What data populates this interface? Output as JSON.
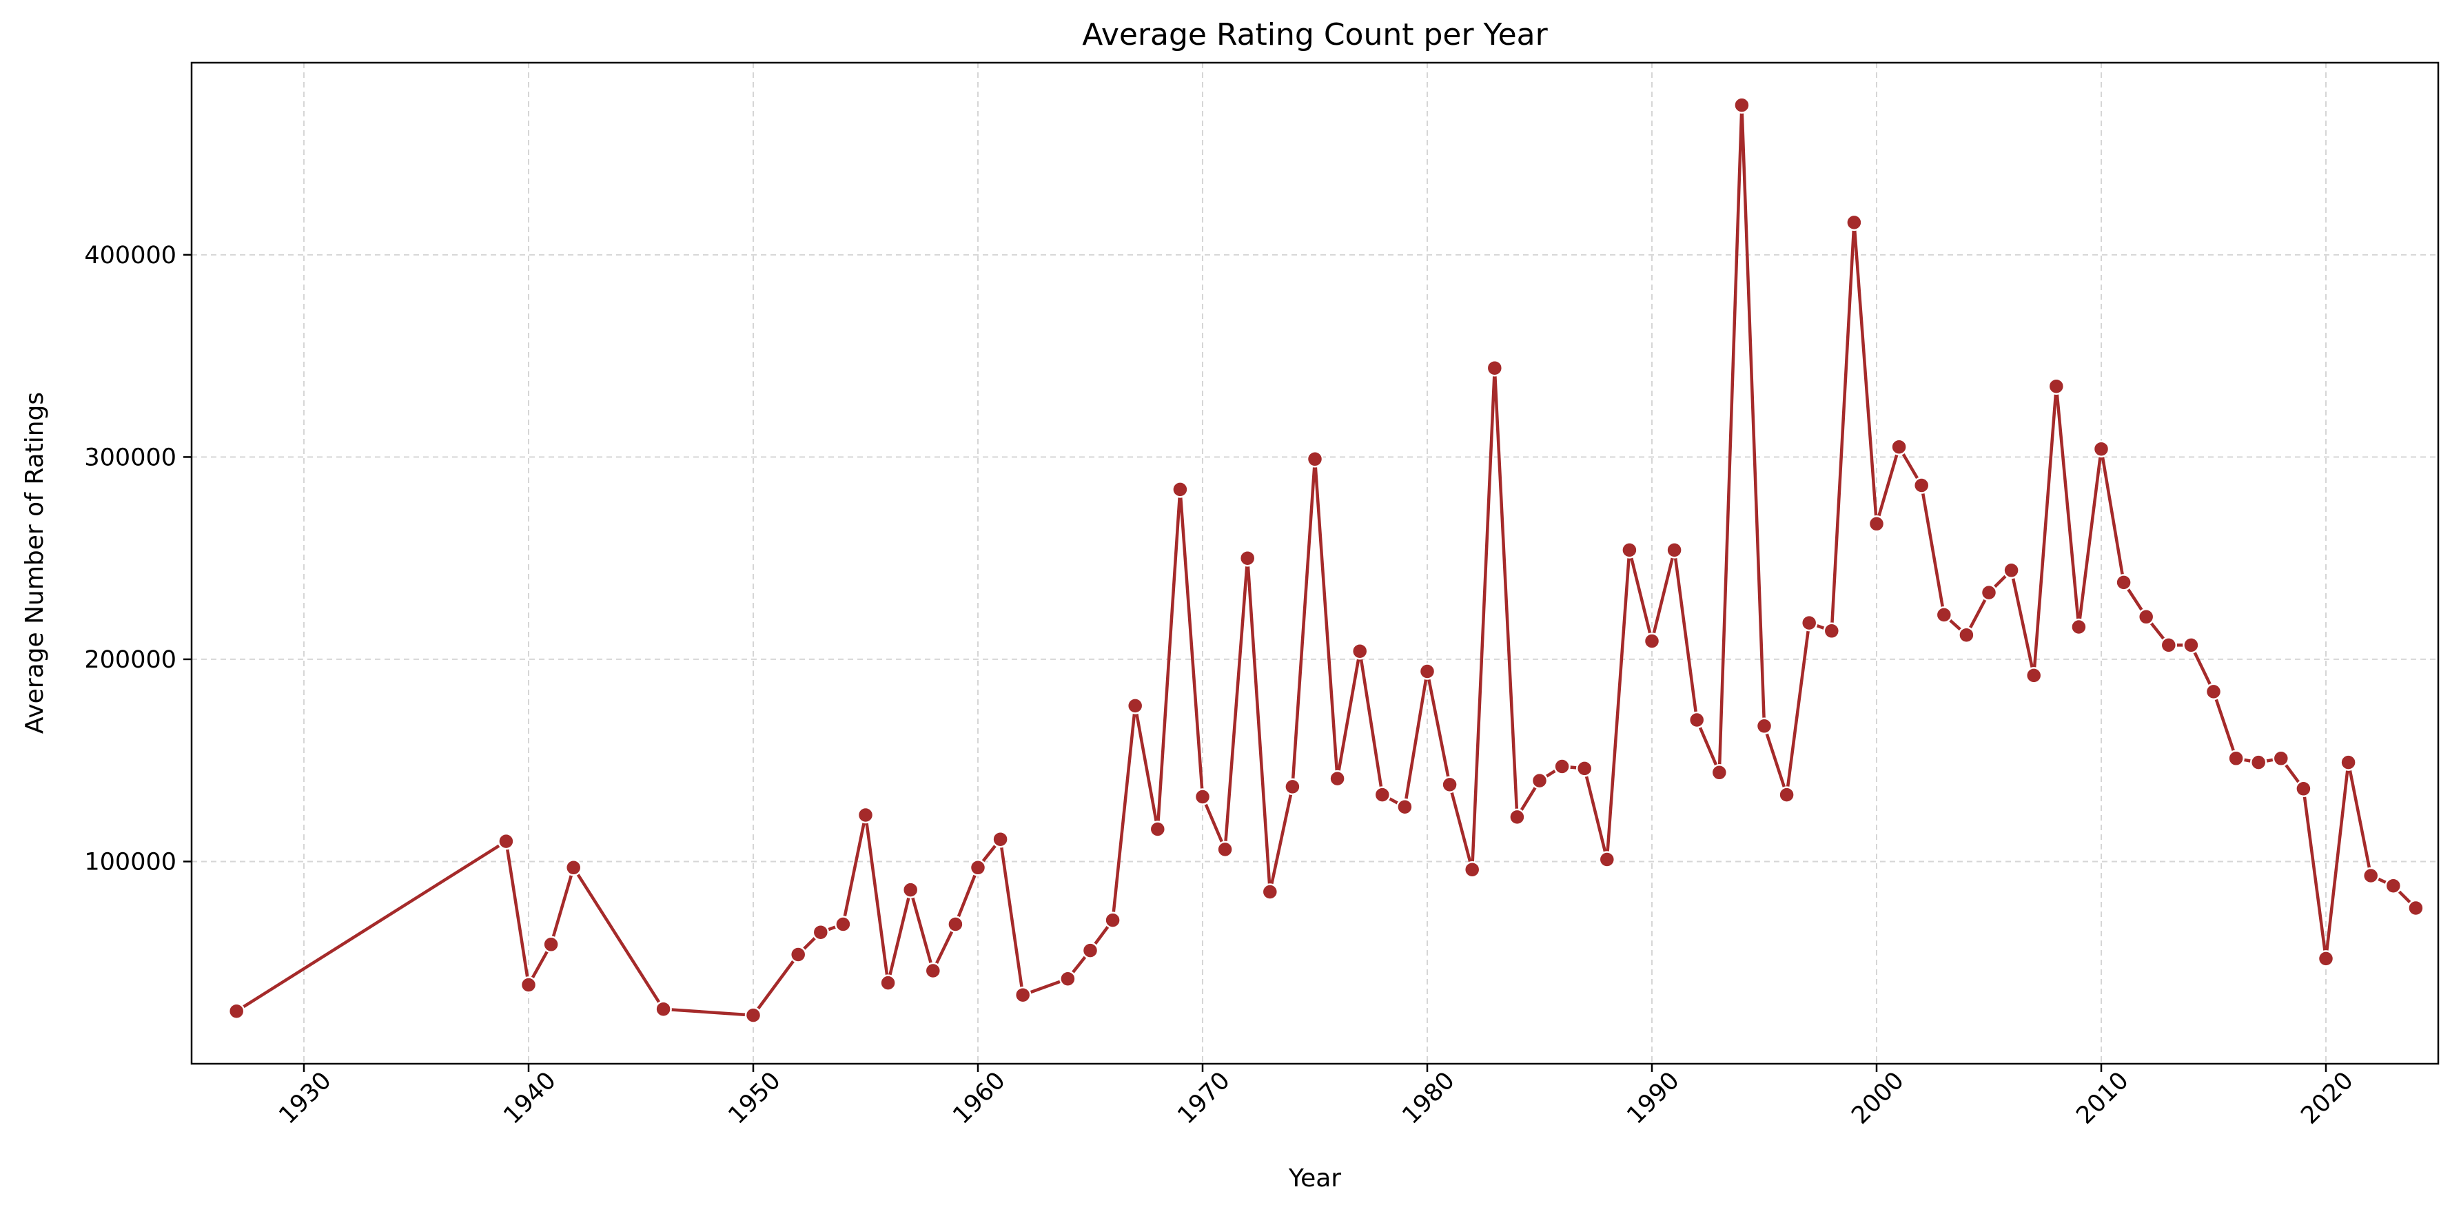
{
  "chart_data": {
    "type": "line",
    "title": "Average Rating Count per Year",
    "xlabel": "Year",
    "ylabel": "Average Number of Ratings",
    "xlim": [
      1925,
      2025
    ],
    "ylim": [
      0,
      495000
    ],
    "x_ticks": [
      1930,
      1940,
      1950,
      1960,
      1970,
      1980,
      1990,
      2000,
      2010,
      2020
    ],
    "y_ticks": [
      100000,
      200000,
      300000,
      400000
    ],
    "grid": true,
    "legend": "none",
    "line_color": "#a52a2a",
    "x": [
      1927,
      1939,
      1940,
      1941,
      1942,
      1946,
      1950,
      1952,
      1953,
      1954,
      1955,
      1956,
      1957,
      1958,
      1959,
      1960,
      1961,
      1962,
      1964,
      1965,
      1966,
      1967,
      1968,
      1969,
      1970,
      1971,
      1972,
      1973,
      1974,
      1975,
      1976,
      1977,
      1978,
      1979,
      1980,
      1981,
      1982,
      1983,
      1984,
      1985,
      1986,
      1987,
      1988,
      1989,
      1990,
      1991,
      1992,
      1993,
      1994,
      1995,
      1996,
      1997,
      1998,
      1999,
      2000,
      2001,
      2002,
      2003,
      2004,
      2005,
      2006,
      2007,
      2008,
      2009,
      2010,
      2011,
      2012,
      2013,
      2014,
      2015,
      2016,
      2017,
      2018,
      2019,
      2020,
      2021,
      2022,
      2023,
      2024
    ],
    "values": [
      26000,
      110000,
      39000,
      59000,
      97000,
      27000,
      24000,
      54000,
      65000,
      69000,
      123000,
      40000,
      86000,
      46000,
      69000,
      97000,
      111000,
      34000,
      42000,
      56000,
      71000,
      177000,
      116000,
      284000,
      132000,
      106000,
      250000,
      85000,
      137000,
      299000,
      141000,
      204000,
      133000,
      127000,
      194000,
      138000,
      96000,
      344000,
      122000,
      140000,
      147000,
      146000,
      101000,
      254000,
      209000,
      254000,
      170000,
      144000,
      474000,
      167000,
      133000,
      218000,
      214000,
      416000,
      267000,
      305000,
      286000,
      222000,
      212000,
      233000,
      244000,
      192000,
      335000,
      216000,
      304000,
      238000,
      221000,
      207000,
      207000,
      184000,
      151000,
      149000,
      151000,
      136000,
      52000,
      149000,
      93000,
      88000,
      77000
    ]
  }
}
